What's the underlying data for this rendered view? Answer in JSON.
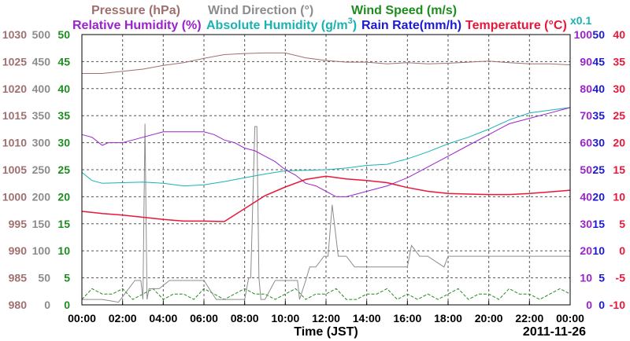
{
  "chart_data": {
    "type": "line",
    "date": "2011-11-26",
    "xlabel": "Time (JST)",
    "x_ticks": [
      "00:00",
      "02:00",
      "04:00",
      "06:00",
      "08:00",
      "10:00",
      "12:00",
      "14:00",
      "16:00",
      "18:00",
      "20:00",
      "22:00",
      "00:00"
    ],
    "x_range_hours": [
      0,
      24
    ],
    "grid": true,
    "axes": {
      "pressure": {
        "label": "Pressure (hPa)",
        "color": "#a06f6f",
        "range": [
          980,
          1030
        ],
        "ticks": [
          "980",
          "985",
          "990",
          "995",
          "1000",
          "1005",
          "1010",
          "1015",
          "1020",
          "1025",
          "1030"
        ]
      },
      "wind_dir": {
        "label": "Wind Direction (°)",
        "color": "#8c8c8c",
        "range": [
          0,
          500
        ],
        "ticks": [
          "0",
          "50",
          "100",
          "150",
          "200",
          "250",
          "300",
          "350",
          "400",
          "450",
          "500"
        ]
      },
      "wind_speed": {
        "label": "Wind Speed (m/s)",
        "color": "#1f8c1f",
        "range": [
          0,
          50
        ],
        "ticks": [
          "0",
          "5",
          "10",
          "15",
          "20",
          "25",
          "30",
          "35",
          "40",
          "45",
          "50"
        ]
      },
      "rel_hum": {
        "label": "Relative Humidity (%)",
        "color": "#9b22cc",
        "range": [
          0,
          100
        ],
        "ticks": [
          "0",
          "10",
          "20",
          "30",
          "40",
          "50",
          "60",
          "70",
          "80",
          "90",
          "100"
        ]
      },
      "abs_hum": {
        "label_main": "Absolute Humidity (g/m",
        "label_sup": "3",
        "label_close": ")",
        "color": "#18b2b2",
        "range": [
          0,
          50
        ]
      },
      "rain": {
        "label": "Rain Rate(mm/h)",
        "color": "#1a1ad6",
        "range": [
          0,
          50
        ],
        "ticks": [
          "0",
          "5",
          "10",
          "15",
          "20",
          "25",
          "30",
          "35",
          "40",
          "45",
          "50"
        ],
        "note": "x0.1"
      },
      "temp": {
        "label": "Temperature (°C)",
        "color": "#e8173a",
        "range": [
          -10,
          40
        ],
        "ticks": [
          "-10",
          "-5",
          "0",
          "5",
          "10",
          "15",
          "20",
          "25",
          "30",
          "35",
          "40"
        ]
      }
    },
    "series": [
      {
        "name": "Pressure (hPa)",
        "axis": "pressure",
        "x": [
          0,
          1,
          2,
          3,
          4,
          5,
          6,
          7,
          8,
          9,
          10,
          11,
          12,
          13,
          14,
          15,
          16,
          17,
          18,
          19,
          20,
          21,
          22,
          23,
          24
        ],
        "values": [
          1022.8,
          1022.8,
          1023.2,
          1023.6,
          1024.3,
          1024.8,
          1025.6,
          1026.3,
          1026.5,
          1026.6,
          1026.6,
          1025.7,
          1025.2,
          1024.9,
          1024.9,
          1024.6,
          1024.8,
          1024.6,
          1024.7,
          1024.9,
          1025.1,
          1024.8,
          1024.6,
          1024.6,
          1024.4
        ]
      },
      {
        "name": "Relative Humidity (%)",
        "axis": "rel_hum",
        "x": [
          0,
          0.5,
          1,
          1.3,
          2,
          2.5,
          3,
          4,
          5,
          6,
          6.5,
          7,
          7.5,
          8,
          8.5,
          9,
          9.5,
          10,
          10.5,
          11,
          11.5,
          12,
          12.5,
          13,
          13.5,
          14,
          15,
          16,
          17,
          18,
          19,
          20,
          21,
          22,
          23,
          24
        ],
        "values": [
          63,
          62,
          59,
          60,
          60,
          61,
          62,
          64,
          64,
          64,
          63,
          61,
          60,
          58,
          57,
          55,
          53,
          50,
          48,
          45,
          44,
          42,
          40,
          40,
          41,
          42,
          44,
          47,
          51,
          55,
          59,
          63,
          67,
          69,
          71,
          73
        ]
      },
      {
        "name": "Absolute Humidity (g/m3)",
        "axis": "abs_hum",
        "x": [
          0,
          0.5,
          1,
          2,
          3,
          4,
          5,
          6,
          7,
          8,
          9,
          10,
          11,
          12,
          13,
          14,
          15,
          16,
          17,
          18,
          19,
          20,
          21,
          22,
          23,
          24
        ],
        "values": [
          24.5,
          23,
          22.5,
          22.6,
          22.7,
          22.5,
          22.0,
          22.2,
          22.8,
          23.5,
          24.2,
          24.8,
          24.9,
          25.0,
          25.3,
          25.8,
          26.0,
          27.0,
          28.3,
          29.8,
          31.0,
          32.5,
          34.2,
          35.5,
          36.0,
          36.5
        ]
      },
      {
        "name": "Temperature (°C)",
        "axis": "temp",
        "x": [
          0,
          1,
          2,
          3,
          4,
          5,
          6,
          7,
          8,
          9,
          10,
          11,
          12,
          13,
          14,
          15,
          16,
          17,
          18,
          19,
          20,
          21,
          22,
          23,
          24
        ],
        "values": [
          7.3,
          6.9,
          6.6,
          6.2,
          5.8,
          5.5,
          5.5,
          5.4,
          7.8,
          10.2,
          11.8,
          13.2,
          13.8,
          13.3,
          13.0,
          12.6,
          11.7,
          11.0,
          10.6,
          10.5,
          10.4,
          10.4,
          10.6,
          10.9,
          11.2
        ]
      },
      {
        "name": "Wind Direction (°)",
        "axis": "wind_dir",
        "x": [
          0,
          1,
          1.8,
          2.6,
          2.9,
          3.0,
          3.1,
          3.2,
          3.3,
          3.8,
          4.3,
          6.0,
          6.6,
          8.0,
          8.2,
          8.3,
          8.5,
          8.6,
          8.7,
          8.8,
          9.0,
          9.5,
          10.0,
          10.6,
          10.7,
          11.0,
          11.2,
          11.5,
          11.9,
          12.1,
          12.3,
          12.6,
          13.0,
          13.4,
          14.0,
          15.0,
          16.0,
          16.2,
          16.6,
          17.0,
          17.8,
          18.0,
          19.0,
          20.0,
          21.0,
          22.0,
          23.0,
          24.0
        ],
        "values": [
          10,
          10,
          5,
          45,
          45,
          10,
          335,
          10,
          30,
          30,
          45,
          45,
          10,
          10,
          50,
          50,
          330,
          330,
          50,
          10,
          10,
          45,
          45,
          45,
          10,
          45,
          70,
          70,
          90,
          90,
          185,
          90,
          90,
          70,
          70,
          70,
          70,
          110,
          90,
          90,
          70,
          90,
          90,
          90,
          90,
          90,
          90,
          90
        ]
      },
      {
        "name": "Wind Speed (m/s)",
        "axis": "wind_speed",
        "x": [
          0,
          0.5,
          1,
          1.5,
          2,
          2.5,
          3,
          3.5,
          4,
          4.5,
          5,
          5.5,
          6,
          6.5,
          7,
          7.5,
          8,
          8.5,
          9,
          9.5,
          10,
          10.5,
          11,
          11.5,
          12,
          12.5,
          13,
          13.5,
          14,
          14.5,
          15,
          15.5,
          16,
          16.5,
          17,
          17.5,
          18,
          18.5,
          19,
          19.5,
          20,
          20.5,
          21,
          21.5,
          22,
          22.5,
          23,
          23.5,
          24
        ],
        "values": [
          1,
          3,
          2,
          2,
          3,
          1,
          2,
          3,
          1,
          2,
          2,
          1,
          3,
          2,
          1,
          2,
          3,
          2,
          2,
          1,
          2,
          3,
          1,
          2,
          2,
          3,
          1,
          1,
          2,
          2,
          3,
          1,
          2,
          1,
          2,
          1,
          2,
          3,
          1,
          2,
          2,
          1,
          3,
          2,
          2,
          1,
          2,
          3,
          2
        ]
      },
      {
        "name": "Rain Rate(mm/h)",
        "axis": "rain",
        "x": [
          0,
          24
        ],
        "values": [
          0,
          0
        ]
      }
    ]
  }
}
